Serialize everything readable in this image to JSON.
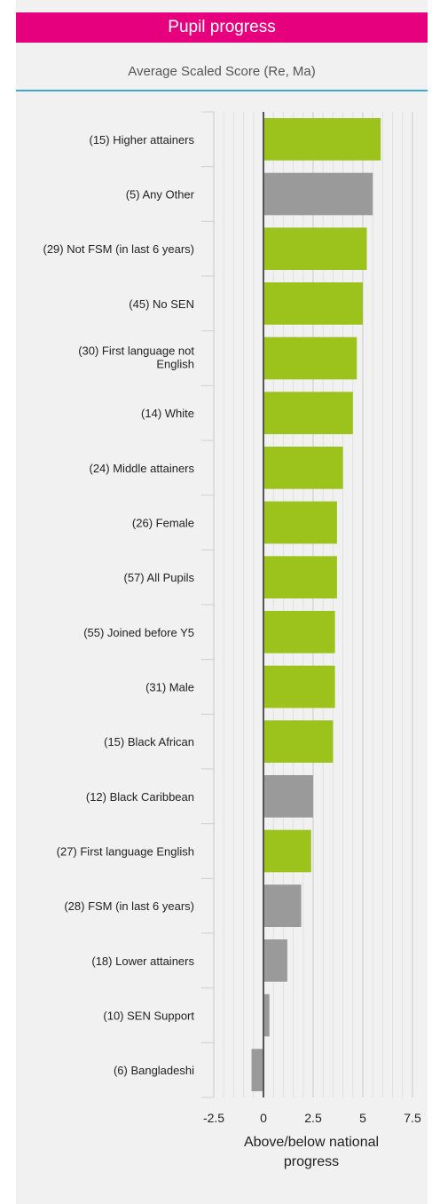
{
  "header": {
    "title": "Pupil progress"
  },
  "chart_data": {
    "type": "bar",
    "orientation": "horizontal",
    "subtitle": "Average Scaled Score (Re, Ma)",
    "xlabel": "Above/below national progress",
    "xlim": [
      -2.5,
      7.5
    ],
    "xticks": [
      -2.5,
      0,
      2.5,
      5,
      7.5
    ],
    "xtick_labels": [
      "-2.5",
      "0",
      "2.5",
      "5",
      "7.5"
    ],
    "grid": true,
    "colors": {
      "above": "#9bc31c",
      "neutral": "#9a9a9a"
    },
    "categories": [
      "(15) Higher attainers",
      "(5) Any Other",
      "(29) Not FSM (in last 6 years)",
      "(45) No SEN",
      "(30) First language not English",
      "(14) White",
      "(24) Middle attainers",
      "(26) Female",
      "(57) All Pupils",
      "(55) Joined before Y5",
      "(31) Male",
      "(15) Black African",
      "(12) Black Caribbean",
      "(27) First language English",
      "(28) FSM (in last 6 years)",
      "(18) Lower attainers",
      "(10) SEN Support",
      "(6) Bangladeshi"
    ],
    "values": [
      5.9,
      5.5,
      5.2,
      5.0,
      4.7,
      4.5,
      4.0,
      3.7,
      3.7,
      3.6,
      3.6,
      3.5,
      2.5,
      2.4,
      1.9,
      1.2,
      0.3,
      -0.6
    ],
    "bar_colors": [
      "above",
      "neutral",
      "above",
      "above",
      "above",
      "above",
      "above",
      "above",
      "above",
      "above",
      "above",
      "above",
      "neutral",
      "above",
      "neutral",
      "neutral",
      "neutral",
      "neutral"
    ]
  }
}
